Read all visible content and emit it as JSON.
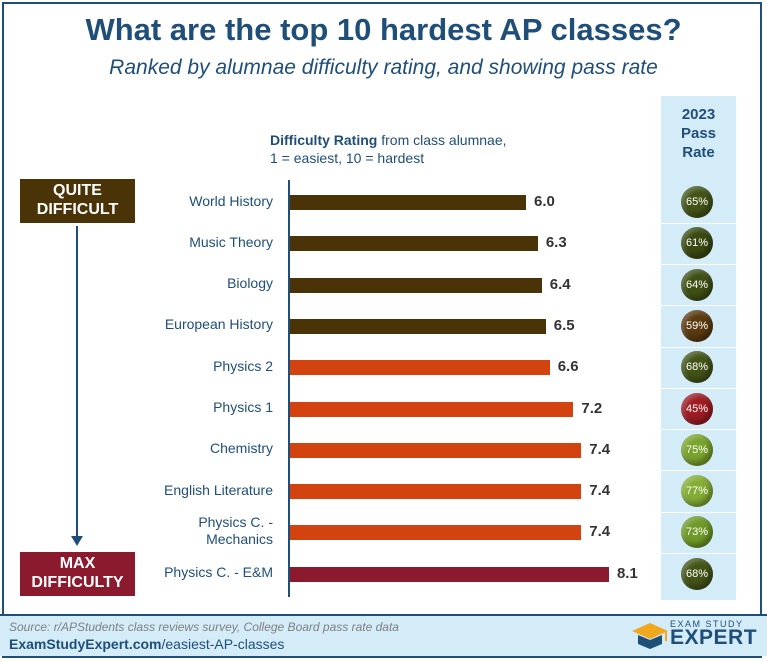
{
  "header": {
    "title": "What are the top 10 hardest AP classes?",
    "subtitle": "Ranked by alumnae difficulty rating, and showing pass rate"
  },
  "pass_header": {
    "line1": "2023",
    "line2": "Pass",
    "line3": "Rate"
  },
  "difficulty_label": {
    "bold": "Difficulty Rating",
    "rest": " from class alumnae,",
    "line2": "1 = easiest, 10 = hardest"
  },
  "badges": {
    "top_line1": "QUITE",
    "top_line2": "DIFFICULT",
    "bottom_line1": "MAX",
    "bottom_line2": "DIFFICULTY"
  },
  "colors": {
    "brown": "#4a3307",
    "orange": "#d34310",
    "crimson": "#8b1a2e",
    "navy": "#1f4e79",
    "passBg": "#d4ecf8"
  },
  "chart_data": {
    "type": "bar",
    "orientation": "horizontal",
    "categories": [
      "World History",
      "Music Theory",
      "Biology",
      "European History",
      "Physics 2",
      "Physics 1",
      "Chemistry",
      "English Literature",
      "Physics C. - Mechanics",
      "Physics C. - E&M"
    ],
    "category_labels": [
      [
        "World History"
      ],
      [
        "Music Theory"
      ],
      [
        "Biology"
      ],
      [
        "European History"
      ],
      [
        "Physics 2"
      ],
      [
        "Physics 1"
      ],
      [
        "Chemistry"
      ],
      [
        "English Literature"
      ],
      [
        "Physics C. -",
        "Mechanics"
      ],
      [
        "Physics C. - E&M"
      ]
    ],
    "values": [
      6.0,
      6.3,
      6.4,
      6.5,
      6.6,
      7.2,
      7.4,
      7.4,
      7.4,
      8.1
    ],
    "value_labels": [
      "6.0",
      "6.3",
      "6.4",
      "6.5",
      "6.6",
      "7.2",
      "7.4",
      "7.4",
      "7.4",
      "8.1"
    ],
    "bar_colors": [
      "#4a3307",
      "#4a3307",
      "#4a3307",
      "#4a3307",
      "#d34310",
      "#d34310",
      "#d34310",
      "#d34310",
      "#d34310",
      "#8b1a2e"
    ],
    "pass_rate": [
      65,
      61,
      64,
      59,
      68,
      45,
      75,
      77,
      73,
      68
    ],
    "pass_rate_labels": [
      "65%",
      "61%",
      "64%",
      "59%",
      "68%",
      "45%",
      "75%",
      "77%",
      "73%",
      "68%"
    ],
    "pass_rate_colors": [
      "#435418",
      "#3a4a12",
      "#3f5015",
      "#5a3a10",
      "#435418",
      "#9e1c24",
      "#7aa32d",
      "#85ad36",
      "#6f9a28",
      "#435418"
    ],
    "xlim": [
      0,
      10
    ]
  },
  "footer": {
    "source": "Source: r/APStudents class reviews survey, College Board pass rate data",
    "url_bold": "ExamStudyExpert.com",
    "url_rest": "/easiest-AP-classes",
    "logo_small": "EXAM STUDY",
    "logo_big": "EXPERT"
  }
}
